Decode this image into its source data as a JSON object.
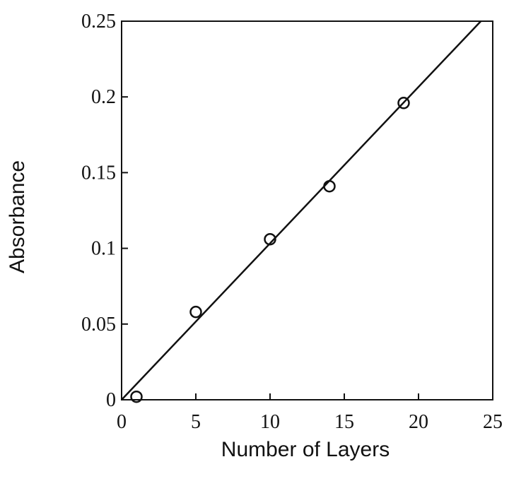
{
  "chart_data": {
    "type": "scatter",
    "xlabel": "Number of Layers",
    "ylabel": "Absorbance",
    "xlim": [
      0,
      25
    ],
    "ylim": [
      0,
      0.25
    ],
    "xticks": [
      0,
      5,
      10,
      15,
      20,
      25
    ],
    "yticks": [
      0,
      0.05,
      0.1,
      0.15,
      0.2,
      0.25
    ],
    "xtick_labels": [
      "0",
      "5",
      "10",
      "15",
      "20",
      "25"
    ],
    "ytick_labels": [
      "0",
      "0.05",
      "0.1",
      "0.15",
      "0.2",
      "0.25"
    ],
    "points": [
      {
        "x": 1,
        "y": 0.002
      },
      {
        "x": 5,
        "y": 0.058
      },
      {
        "x": 10,
        "y": 0.106
      },
      {
        "x": 14,
        "y": 0.141
      },
      {
        "x": 19,
        "y": 0.196
      }
    ],
    "fit_line": {
      "x": [
        0,
        24.2
      ],
      "y": [
        0,
        0.25
      ]
    },
    "grid": false,
    "marker": "open-circle",
    "colors": {
      "ink": "#111111",
      "background": "#ffffff"
    }
  }
}
